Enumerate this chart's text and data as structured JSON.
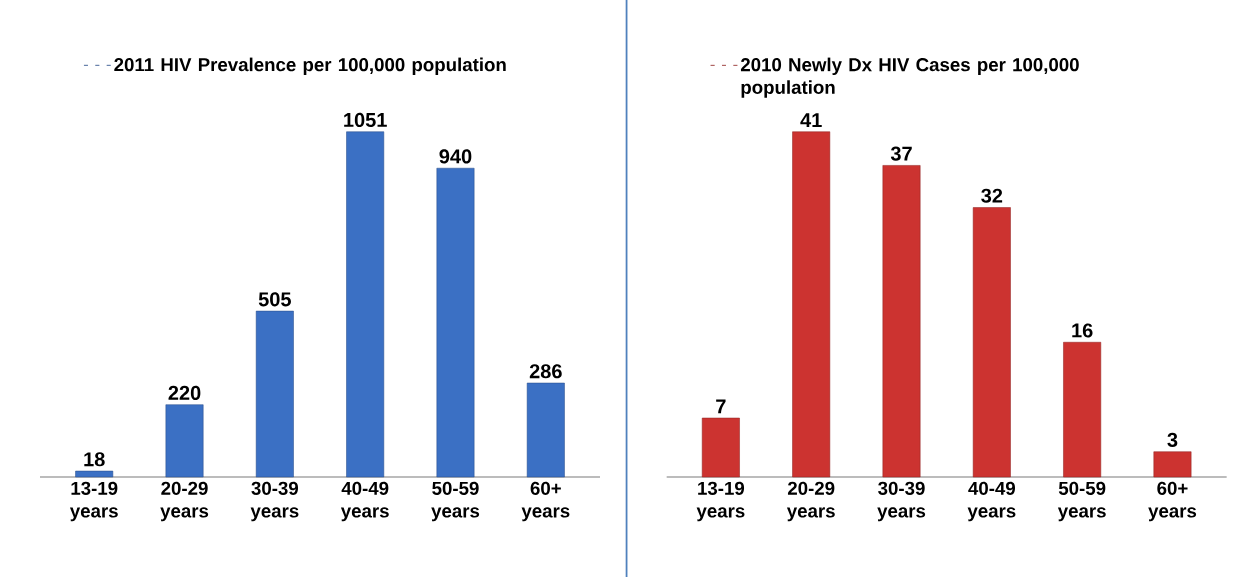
{
  "chart_data": [
    {
      "type": "bar",
      "title": null,
      "categories": [
        "13-19 years",
        "20-29 years",
        "30-39 years",
        "40-49 years",
        "50-59 years",
        "60+ years"
      ],
      "series": [
        {
          "name": "2011 HIV Prevalence per 100,000 population",
          "color": "#3b70c4",
          "values": [
            18,
            220,
            505,
            1051,
            940,
            286
          ]
        }
      ],
      "data_labels": true,
      "legend": "top"
    },
    {
      "type": "bar",
      "categories": [
        "13-19 years",
        "20-29 years",
        "30-39 years",
        "40-49 years",
        "50-59 years",
        "60+ years"
      ],
      "series": [
        {
          "name": "2010 Newly Dx HIV Cases per 100,000 population",
          "color": "#cc3330",
          "values": [
            7,
            41,
            37,
            32,
            16,
            3
          ]
        }
      ],
      "data_labels": true,
      "legend": "top"
    }
  ]
}
